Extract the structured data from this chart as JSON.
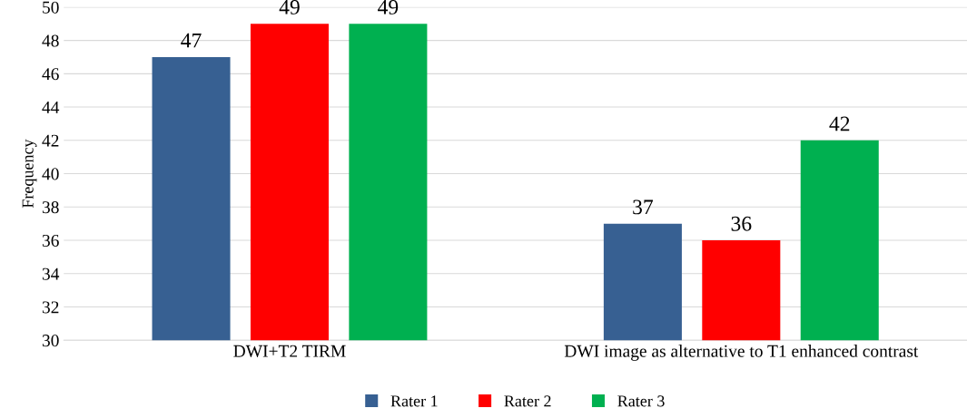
{
  "chart_data": {
    "type": "bar",
    "ylabel": "Frequency",
    "categories": [
      "DWI+T2 TIRM",
      "DWI image as alternative to T1 enhanced contrast"
    ],
    "series": [
      {
        "name": "Rater 1",
        "color": "#376092",
        "values": [
          47,
          37
        ]
      },
      {
        "name": "Rater 2",
        "color": "#ff0000",
        "values": [
          49,
          36
        ]
      },
      {
        "name": "Rater 3",
        "color": "#00b050",
        "values": [
          49,
          42
        ]
      }
    ],
    "ylim": [
      30,
      50
    ],
    "yticks": [
      30,
      32,
      34,
      36,
      38,
      40,
      42,
      44,
      46,
      48,
      50
    ],
    "grid": "y",
    "legend": "bottom",
    "data_labels": true
  }
}
